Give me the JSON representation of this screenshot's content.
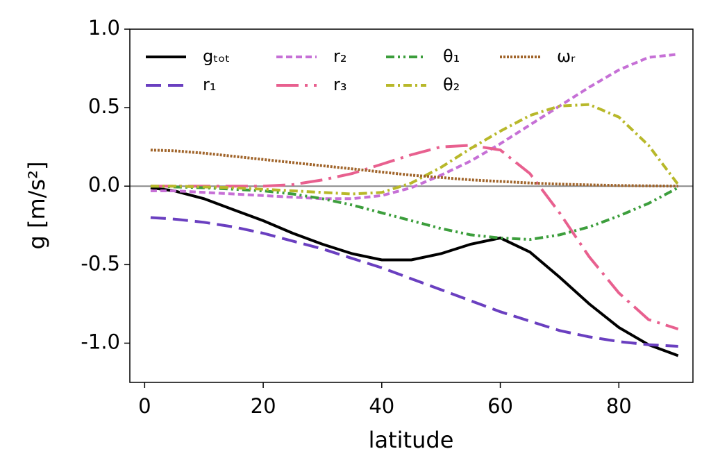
{
  "chart_data": {
    "type": "line",
    "xlabel": "latitude",
    "ylabel": "g [m/s²]",
    "x": [
      1,
      5,
      10,
      15,
      20,
      25,
      30,
      35,
      40,
      45,
      50,
      55,
      60,
      65,
      70,
      75,
      80,
      85,
      90
    ],
    "xlim": [
      -2.5,
      92.5
    ],
    "ylim": [
      -1.25,
      1.0
    ],
    "xticks": [
      0,
      20,
      40,
      60,
      80
    ],
    "yticks": [
      {
        "value": 1.0,
        "label": "1.0"
      },
      {
        "value": 0.5,
        "label": "0.5"
      },
      {
        "value": 0.0,
        "label": "0.0"
      },
      {
        "value": -0.5,
        "label": "-0.5"
      },
      {
        "value": -1.0,
        "label": "-1.0"
      }
    ],
    "hline": 0,
    "legend": "upper left",
    "series": [
      {
        "name": "gₜₒₜ",
        "color": "#000000",
        "dash": "none",
        "values": [
          -0.01,
          -0.03,
          -0.08,
          -0.15,
          -0.22,
          -0.3,
          -0.37,
          -0.43,
          -0.47,
          -0.47,
          -0.43,
          -0.37,
          -0.33,
          -0.42,
          -0.58,
          -0.75,
          -0.9,
          -1.01,
          -1.08
        ]
      },
      {
        "name": "r₁",
        "color": "#6a3fc0",
        "dash": "22,10",
        "values": [
          -0.2,
          -0.21,
          -0.23,
          -0.26,
          -0.3,
          -0.35,
          -0.4,
          -0.46,
          -0.52,
          -0.59,
          -0.66,
          -0.73,
          -0.8,
          -0.86,
          -0.92,
          -0.96,
          -0.99,
          -1.01,
          -1.02
        ]
      },
      {
        "name": "r₂",
        "color": "#c670d6",
        "dash": "9,5",
        "values": [
          -0.03,
          -0.03,
          -0.04,
          -0.05,
          -0.06,
          -0.07,
          -0.08,
          -0.08,
          -0.06,
          -0.01,
          0.07,
          0.16,
          0.27,
          0.39,
          0.51,
          0.63,
          0.74,
          0.82,
          0.84
        ]
      },
      {
        "name": "r₃",
        "color": "#e8608f",
        "dash": "32,9,4,9",
        "values": [
          0,
          0,
          0,
          0,
          0,
          0.01,
          0.04,
          0.08,
          0.14,
          0.2,
          0.25,
          0.26,
          0.23,
          0.08,
          -0.17,
          -0.45,
          -0.68,
          -0.85,
          -0.91
        ]
      },
      {
        "name": "θ₁",
        "color": "#3c9e3c",
        "dash": "12,5,3,5,3,5",
        "values": [
          0,
          -0.005,
          -0.01,
          -0.02,
          -0.03,
          -0.05,
          -0.08,
          -0.12,
          -0.17,
          -0.22,
          -0.27,
          -0.31,
          -0.33,
          -0.34,
          -0.31,
          -0.26,
          -0.19,
          -0.11,
          -0.01
        ]
      },
      {
        "name": "θ₂",
        "color": "#b8b82a",
        "dash": "12,5,3,5",
        "values": [
          0,
          0,
          -0.005,
          -0.01,
          -0.02,
          -0.03,
          -0.04,
          -0.05,
          -0.04,
          0.02,
          0.12,
          0.24,
          0.35,
          0.45,
          0.51,
          0.52,
          0.44,
          0.26,
          0.01
        ]
      },
      {
        "name": "ωᵣ",
        "color": "#a0642a",
        "dash": "3,2",
        "values": [
          0.23,
          0.225,
          0.21,
          0.19,
          0.17,
          0.15,
          0.13,
          0.11,
          0.09,
          0.07,
          0.055,
          0.04,
          0.03,
          0.02,
          0.013,
          0.008,
          0.004,
          0.002,
          0
        ]
      }
    ]
  }
}
